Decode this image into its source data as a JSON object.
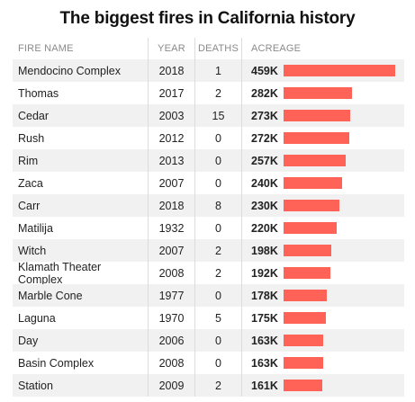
{
  "title": "The biggest fires in California history",
  "colors": {
    "bar": "#ff6358",
    "row_shade": "#f1f1f1"
  },
  "columns": {
    "name": "FIRE NAME",
    "year": "YEAR",
    "deaths": "DEATHS",
    "acreage": "ACREAGE"
  },
  "chart_data": {
    "type": "table",
    "title": "The biggest fires in California history",
    "acreage_max": 459,
    "rows": [
      {
        "name": "Mendocino Complex",
        "year": "2018",
        "deaths": "1",
        "acreage_label": "459K",
        "acreage": 459
      },
      {
        "name": "Thomas",
        "year": "2017",
        "deaths": "2",
        "acreage_label": "282K",
        "acreage": 282
      },
      {
        "name": "Cedar",
        "year": "2003",
        "deaths": "15",
        "acreage_label": "273K",
        "acreage": 273
      },
      {
        "name": "Rush",
        "year": "2012",
        "deaths": "0",
        "acreage_label": "272K",
        "acreage": 272
      },
      {
        "name": "Rim",
        "year": "2013",
        "deaths": "0",
        "acreage_label": "257K",
        "acreage": 257
      },
      {
        "name": "Zaca",
        "year": "2007",
        "deaths": "0",
        "acreage_label": "240K",
        "acreage": 240
      },
      {
        "name": "Carr",
        "year": "2018",
        "deaths": "8",
        "acreage_label": "230K",
        "acreage": 230
      },
      {
        "name": "Matilija",
        "year": "1932",
        "deaths": "0",
        "acreage_label": "220K",
        "acreage": 220
      },
      {
        "name": "Witch",
        "year": "2007",
        "deaths": "2",
        "acreage_label": "198K",
        "acreage": 198
      },
      {
        "name": "Klamath Theater Complex",
        "year": "2008",
        "deaths": "2",
        "acreage_label": "192K",
        "acreage": 192
      },
      {
        "name": "Marble Cone",
        "year": "1977",
        "deaths": "0",
        "acreage_label": "178K",
        "acreage": 178
      },
      {
        "name": "Laguna",
        "year": "1970",
        "deaths": "5",
        "acreage_label": "175K",
        "acreage": 175
      },
      {
        "name": "Day",
        "year": "2006",
        "deaths": "0",
        "acreage_label": "163K",
        "acreage": 163
      },
      {
        "name": "Basin Complex",
        "year": "2008",
        "deaths": "0",
        "acreage_label": "163K",
        "acreage": 163
      },
      {
        "name": "Station",
        "year": "2009",
        "deaths": "2",
        "acreage_label": "161K",
        "acreage": 161
      }
    ]
  }
}
